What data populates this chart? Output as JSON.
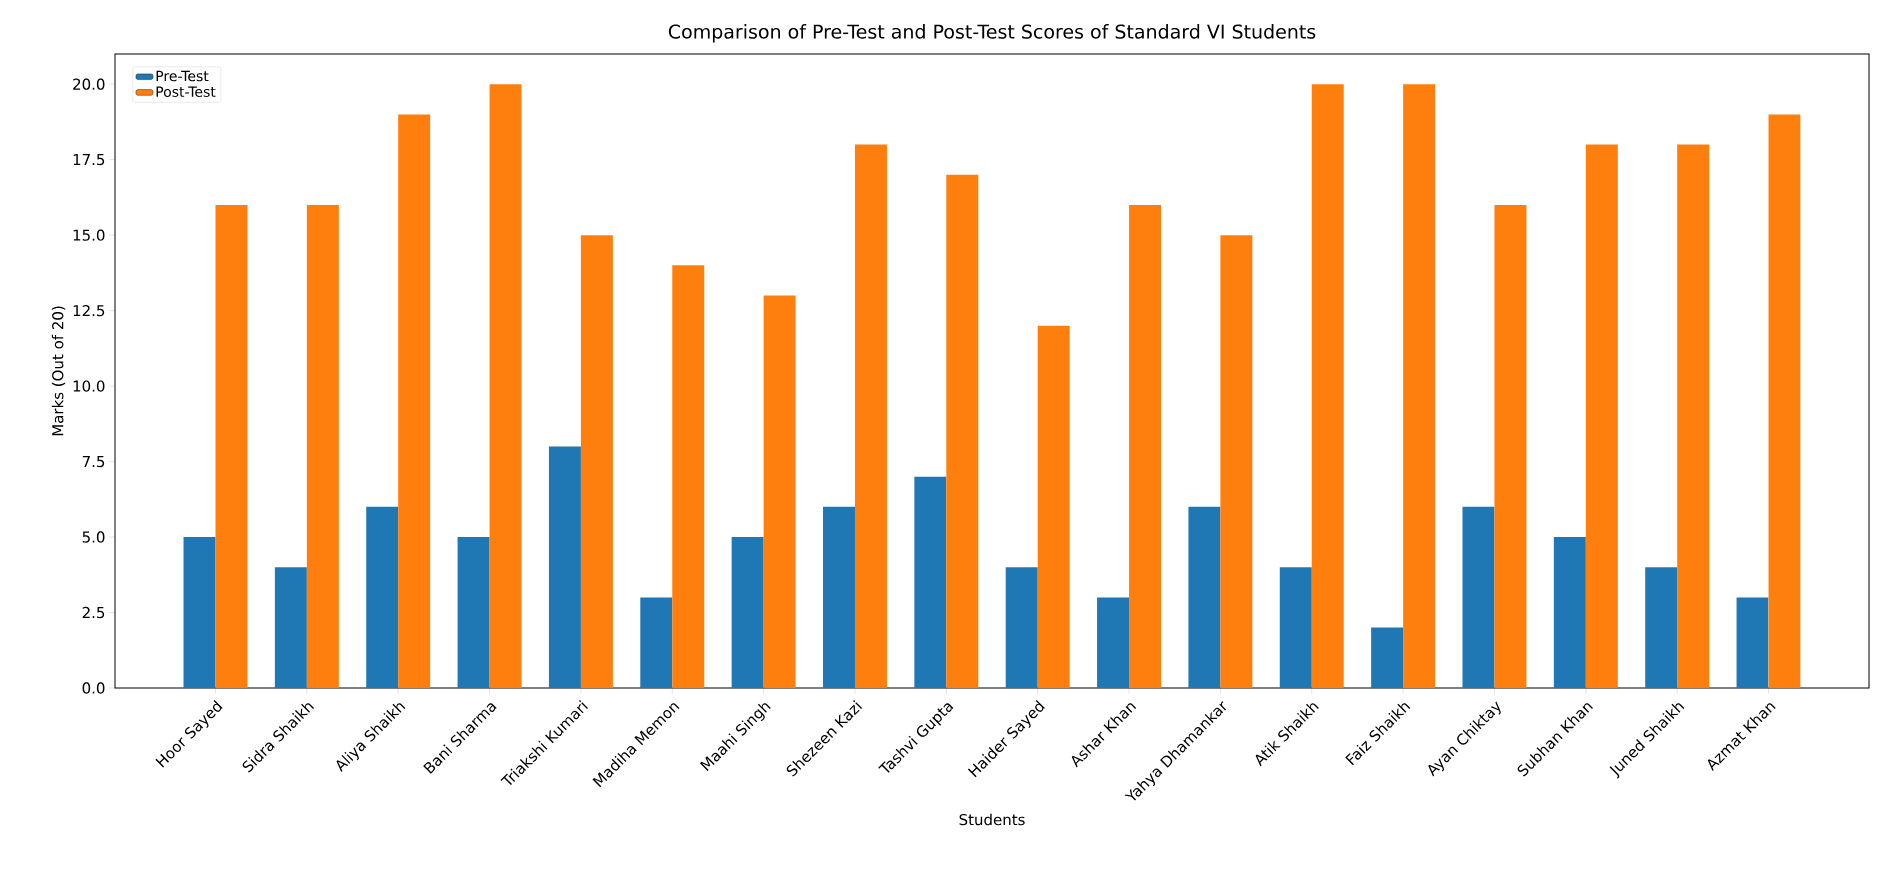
{
  "chart_data": {
    "type": "bar",
    "title": "Comparison of Pre-Test and Post-Test Scores of Standard VI Students",
    "xlabel": "Students",
    "ylabel": "Marks (Out of 20)",
    "categories": [
      "Hoor Sayed",
      "Sidra Shaikh",
      "Aliya Shaikh",
      "Bani Sharma",
      "Triakshi Kumari",
      "Madiha Memon",
      "Maahi Singh",
      "Shezeen Kazi",
      "Tashvi Gupta",
      "Haider Sayed",
      "Ashar Khan",
      "Yahya Dhamankar",
      "Atik Shaikh",
      "Faiz Shaikh",
      "Ayan Chiktay",
      "Subhan Khan",
      "Juned Shaikh",
      "Azmat Khan"
    ],
    "series": [
      {
        "name": "Pre-Test",
        "color": "#1f77b4",
        "values": [
          5,
          4,
          6,
          5,
          8,
          3,
          5,
          6,
          7,
          4,
          3,
          6,
          4,
          2,
          6,
          5,
          4,
          3
        ]
      },
      {
        "name": "Post-Test",
        "color": "#ff7f0e",
        "values": [
          16,
          16,
          19,
          20,
          15,
          14,
          13,
          18,
          17,
          12,
          16,
          15,
          20,
          20,
          16,
          18,
          18,
          19
        ]
      }
    ],
    "ylim": [
      0,
      21
    ],
    "yticks": [
      {
        "value": 0,
        "label": "0.0"
      },
      {
        "value": 2.5,
        "label": "2.5"
      },
      {
        "value": 5,
        "label": "5.0"
      },
      {
        "value": 7.5,
        "label": "7.5"
      },
      {
        "value": 10,
        "label": "10.0"
      },
      {
        "value": 12.5,
        "label": "12.5"
      },
      {
        "value": 15,
        "label": "15.0"
      },
      {
        "value": 17.5,
        "label": "17.5"
      },
      {
        "value": 20,
        "label": "20.0"
      }
    ],
    "legend": "top left"
  }
}
